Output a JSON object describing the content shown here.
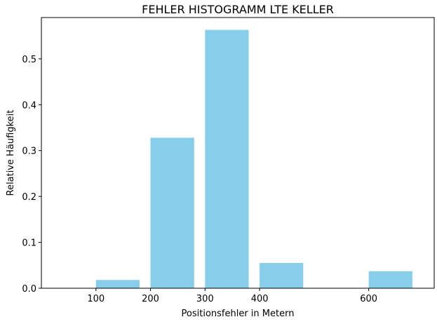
{
  "chart_data": {
    "type": "bar",
    "title": "FEHLER HISTOGRAMM LTE KELLER",
    "xlabel": "Positionsfehler in Metern",
    "ylabel": "Relative Häufigkeit",
    "bar_color": "#87ceeb",
    "bars": [
      {
        "x": 140,
        "value": 0.018
      },
      {
        "x": 240,
        "value": 0.328
      },
      {
        "x": 340,
        "value": 0.563
      },
      {
        "x": 440,
        "value": 0.055
      },
      {
        "x": 640,
        "value": 0.037
      }
    ],
    "bar_width": 80,
    "xlim": [
      0,
      720
    ],
    "ylim": [
      0,
      0.59
    ],
    "xticks": [
      100,
      200,
      300,
      400,
      600
    ],
    "yticks": [
      0.0,
      0.1,
      0.2,
      0.3,
      0.4,
      0.5
    ],
    "xtick_labels": [
      "100",
      "200",
      "300",
      "400",
      "600"
    ],
    "ytick_labels": [
      "0.0",
      "0.1",
      "0.2",
      "0.3",
      "0.4",
      "0.5"
    ],
    "grid": false
  }
}
